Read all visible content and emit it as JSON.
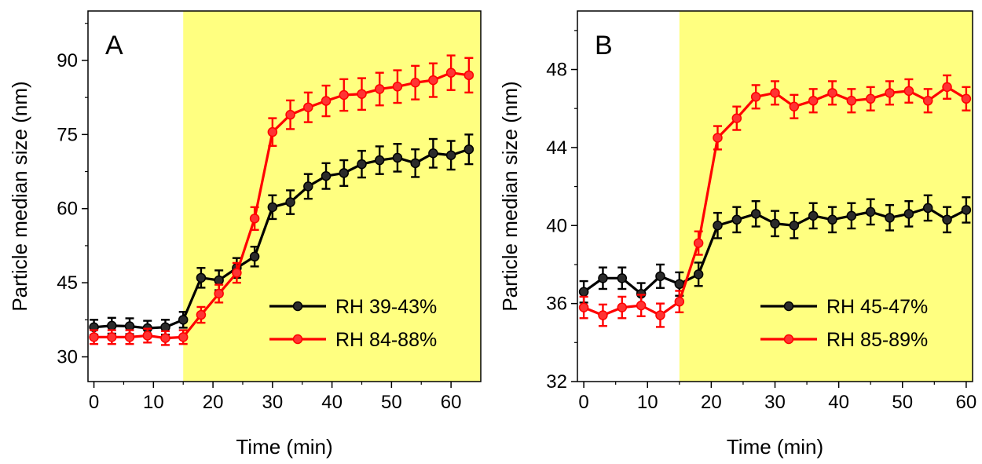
{
  "colors": {
    "shade": "#ffff80",
    "series_1": "#000000",
    "series_2": "#ff0000",
    "marker_1": "#2b2b2b",
    "marker_2": "#ff3333"
  },
  "chart_data": [
    {
      "type": "line",
      "panel_label": "A",
      "xlabel": "Time (min)",
      "ylabel": "Particle median size (nm)",
      "xlim": [
        -1,
        65
      ],
      "ylim": [
        25,
        100
      ],
      "xticks": [
        0,
        10,
        20,
        30,
        40,
        50,
        60
      ],
      "yticks": [
        30,
        45,
        60,
        75,
        90
      ],
      "shaded_region": {
        "x_start": 15,
        "x_end": 65
      },
      "legend_position": "bottom-right",
      "x": [
        0,
        3,
        6,
        9,
        12,
        15,
        18,
        21,
        24,
        27,
        30,
        33,
        36,
        39,
        42,
        45,
        48,
        51,
        54,
        57,
        60,
        63
      ],
      "series": [
        {
          "name": "RH 39-43%",
          "values": [
            36,
            36.3,
            36.2,
            35.8,
            36,
            37.5,
            46,
            45.5,
            48,
            50.3,
            60.3,
            61.3,
            64.5,
            66.6,
            67.2,
            69,
            69.8,
            70.3,
            69.2,
            71.2,
            70.8,
            72
          ],
          "errors": [
            1.5,
            1.6,
            1.6,
            1.5,
            1.5,
            1.6,
            2,
            2,
            2,
            2,
            2.4,
            2.4,
            2.5,
            2.6,
            2.6,
            2.7,
            2.8,
            2.8,
            2.8,
            2.9,
            2.9,
            3
          ]
        },
        {
          "name": "RH 84-88%",
          "values": [
            34,
            34,
            34,
            34.3,
            33.8,
            34,
            38.5,
            42.8,
            47,
            58,
            75.5,
            79,
            80.5,
            81.8,
            83,
            83.2,
            84.2,
            84.7,
            85.5,
            86,
            87.5,
            87
          ],
          "errors": [
            1.4,
            1.4,
            1.4,
            1.4,
            1.4,
            1.4,
            1.6,
            1.8,
            2,
            2.3,
            2.8,
            2.9,
            3,
            3.1,
            3.2,
            3.2,
            3.3,
            3.3,
            3.4,
            3.4,
            3.5,
            3.5
          ]
        }
      ]
    },
    {
      "type": "line",
      "panel_label": "B",
      "xlabel": "Time (min)",
      "ylabel": "Particle median size (nm)",
      "xlim": [
        -1,
        61
      ],
      "ylim": [
        32,
        51
      ],
      "xticks": [
        0,
        10,
        20,
        30,
        40,
        50,
        60
      ],
      "yticks": [
        32,
        36,
        40,
        44,
        48
      ],
      "shaded_region": {
        "x_start": 15,
        "x_end": 61
      },
      "legend_position": "bottom-right",
      "x": [
        0,
        3,
        6,
        9,
        12,
        15,
        18,
        21,
        24,
        27,
        30,
        33,
        36,
        39,
        42,
        45,
        48,
        51,
        54,
        57,
        60
      ],
      "series": [
        {
          "name": "RH 45-47%",
          "values": [
            36.6,
            37.3,
            37.3,
            36.5,
            37.4,
            37,
            37.5,
            40,
            40.3,
            40.6,
            40.1,
            40,
            40.5,
            40.3,
            40.5,
            40.7,
            40.4,
            40.6,
            40.9,
            40.3,
            40.8
          ],
          "errors": [
            0.55,
            0.55,
            0.55,
            0.55,
            0.6,
            0.6,
            0.6,
            0.65,
            0.65,
            0.65,
            0.65,
            0.65,
            0.65,
            0.65,
            0.65,
            0.65,
            0.65,
            0.65,
            0.65,
            0.65,
            0.65
          ]
        },
        {
          "name": "RH 85-89%",
          "values": [
            35.8,
            35.4,
            35.8,
            35.9,
            35.4,
            36.1,
            39.1,
            44.5,
            45.5,
            46.6,
            46.8,
            46.1,
            46.4,
            46.8,
            46.4,
            46.5,
            46.8,
            46.9,
            46.4,
            47.1,
            46.5
          ],
          "errors": [
            0.55,
            0.55,
            0.55,
            0.55,
            0.6,
            0.55,
            0.6,
            0.6,
            0.6,
            0.6,
            0.6,
            0.6,
            0.6,
            0.6,
            0.6,
            0.6,
            0.6,
            0.6,
            0.6,
            0.6,
            0.6
          ]
        }
      ]
    }
  ]
}
